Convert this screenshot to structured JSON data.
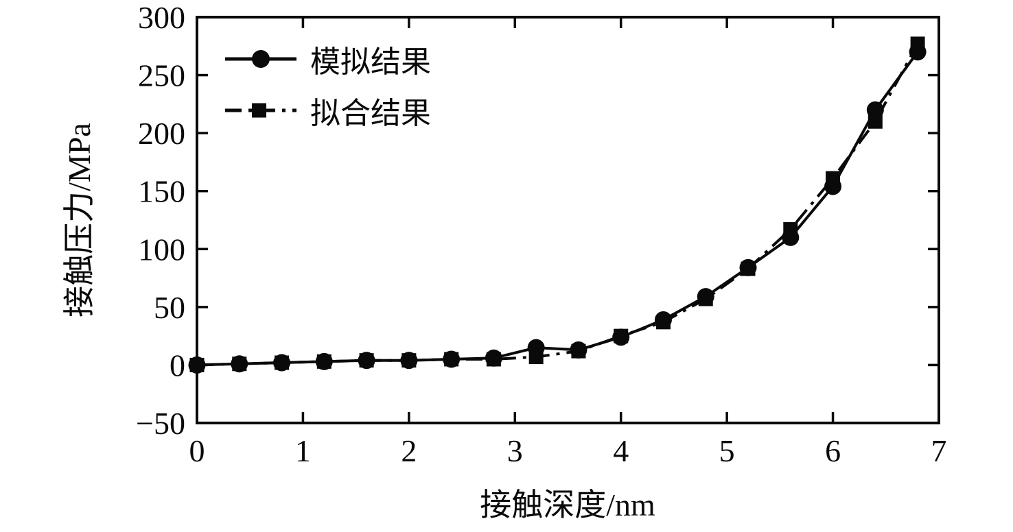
{
  "chart_data": {
    "type": "line",
    "title": "",
    "xlabel": "接触深度/nm",
    "ylabel": "接触压力/MPa",
    "xlim": [
      0,
      7
    ],
    "ylim": [
      -50,
      300
    ],
    "x_ticks": [
      0,
      1,
      2,
      3,
      4,
      5,
      6,
      7
    ],
    "y_ticks": [
      -50,
      0,
      50,
      100,
      150,
      200,
      250,
      300
    ],
    "grid": false,
    "legend_position": "upper-left-inside",
    "x": [
      0,
      0.4,
      0.8,
      1.2,
      1.6,
      2.0,
      2.4,
      2.8,
      3.2,
      3.6,
      4.0,
      4.4,
      4.8,
      5.2,
      5.6,
      6.0,
      6.4,
      6.8
    ],
    "series": [
      {
        "name": "拟合结果",
        "marker": "square",
        "line_style": "dash-dot",
        "values": [
          0,
          1,
          2,
          3,
          4,
          4,
          5,
          5,
          7,
          12,
          25,
          37,
          57,
          83,
          117,
          161,
          210,
          277
        ]
      },
      {
        "name": "模拟结果",
        "marker": "circle",
        "line_style": "solid",
        "values": [
          0,
          1,
          2,
          3,
          4,
          4,
          5,
          6,
          15,
          13,
          24,
          39,
          59,
          84,
          110,
          154,
          220,
          270
        ]
      }
    ]
  },
  "legend": {
    "item_simulation": "模拟结果",
    "item_fit": "拟合结果"
  },
  "colors": {
    "foreground": "#0a0a0a",
    "background": "#ffffff"
  }
}
